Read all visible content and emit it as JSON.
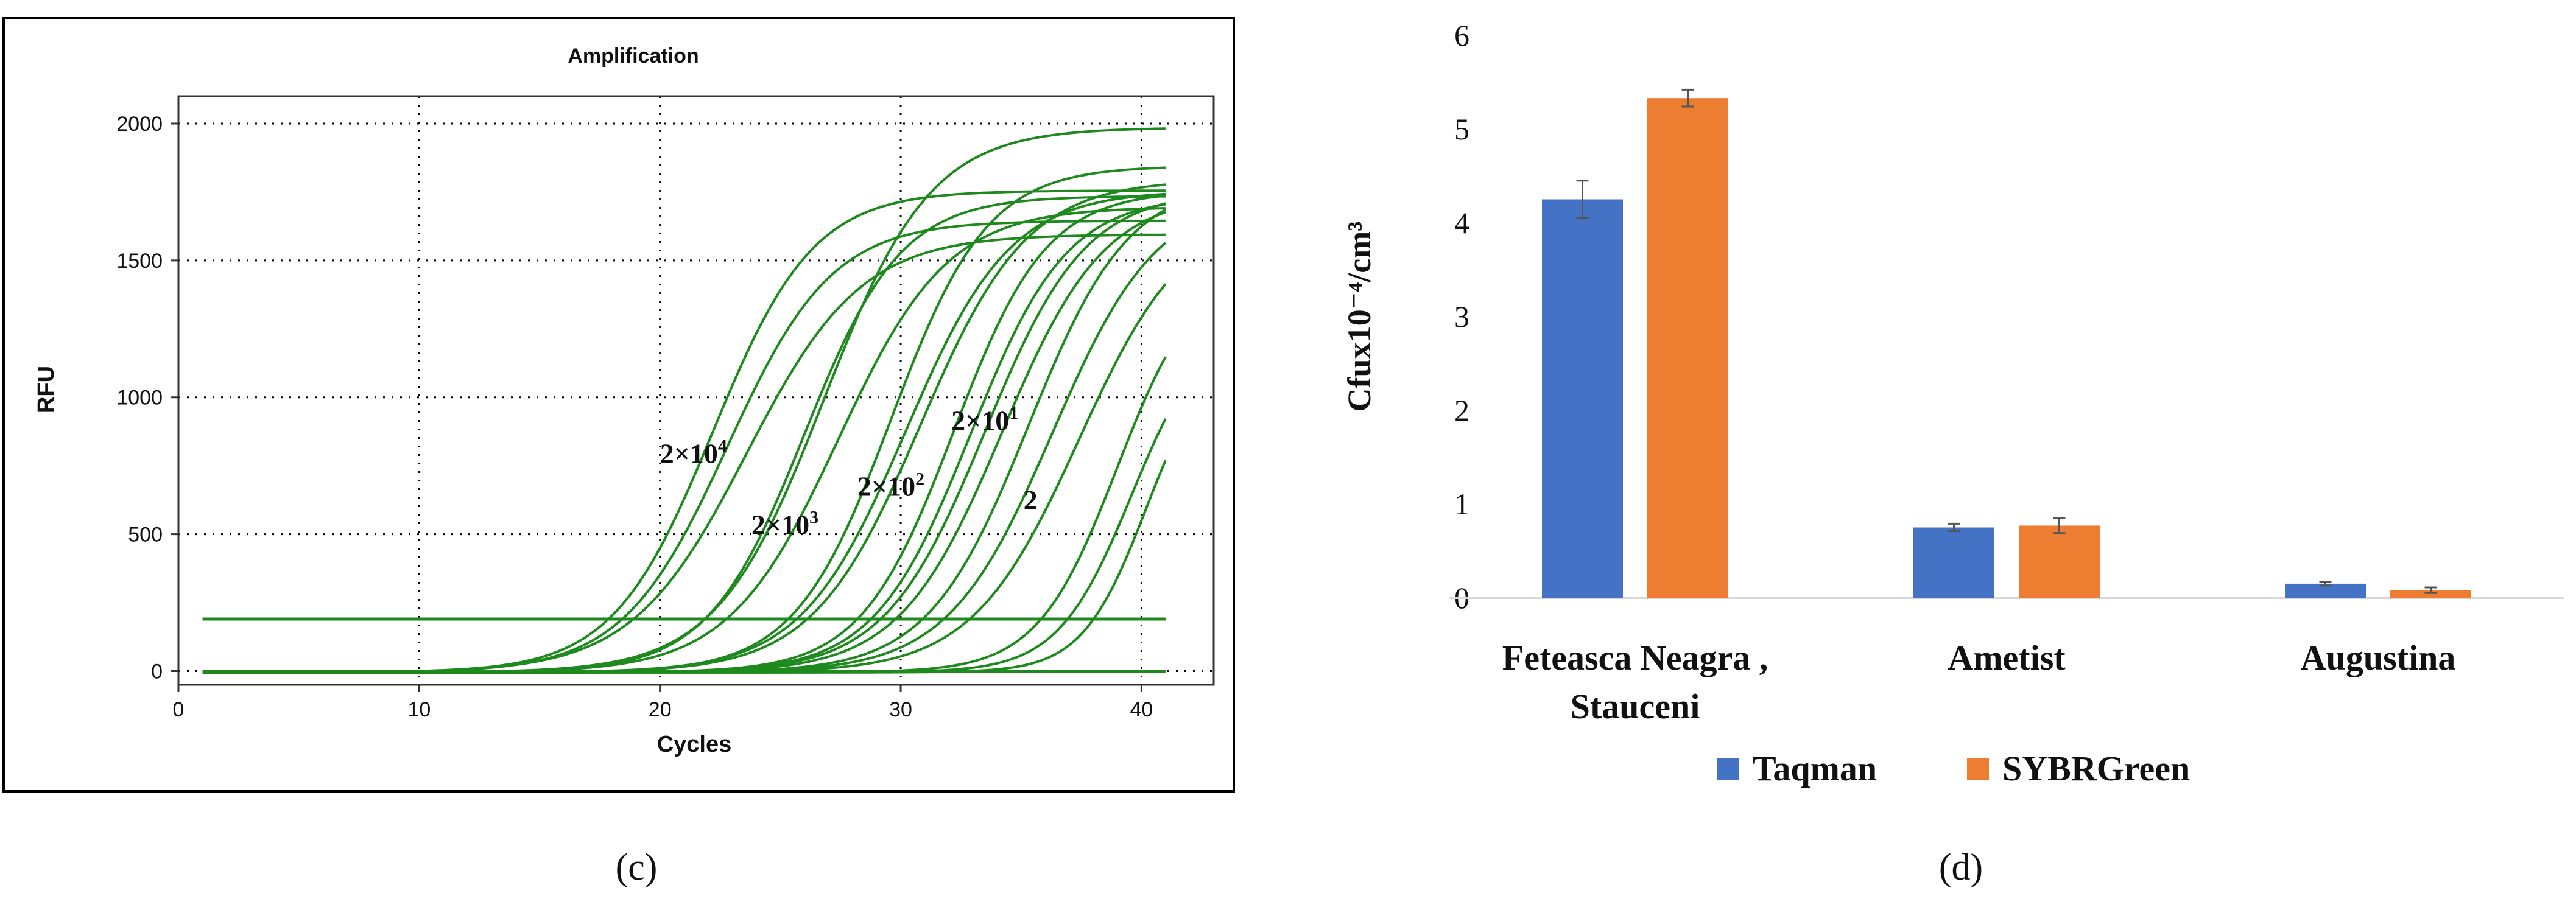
{
  "panel_c_caption": "(c)",
  "panel_d_caption": "(d)",
  "colors": {
    "curve": "#1e8a1e",
    "taqman": "#4472c4",
    "sybr": "#ed7d31",
    "grid": "#000000",
    "axis_d": "#d9d9d9"
  },
  "chart_data": [
    {
      "type": "line",
      "title": "Amplification",
      "xlabel": "Cycles",
      "ylabel": "RFU",
      "xlim": [
        0,
        43
      ],
      "ylim": [
        -50,
        2100
      ],
      "xticks": [
        0,
        10,
        20,
        30,
        40
      ],
      "yticks": [
        0,
        500,
        1000,
        1500,
        2000
      ],
      "grid": "dotted",
      "threshold": 190,
      "series": [
        {
          "name": "2×10^4 a",
          "ct": 22.2,
          "k": 0.48,
          "plateau": 1760
        },
        {
          "name": "2×10^4 b",
          "ct": 22.8,
          "k": 0.46,
          "plateau": 1650
        },
        {
          "name": "2×10^4 c",
          "ct": 23.6,
          "k": 0.42,
          "plateau": 1600
        },
        {
          "name": "2×10^3 a",
          "ct": 26.0,
          "k": 0.5,
          "plateau": 1740
        },
        {
          "name": "2×10^3 b",
          "ct": 26.8,
          "k": 0.45,
          "plateau": 1990
        },
        {
          "name": "2×10^3 c",
          "ct": 27.4,
          "k": 0.44,
          "plateau": 1700
        },
        {
          "name": "2×10^2 a",
          "ct": 29.6,
          "k": 0.5,
          "plateau": 1850
        },
        {
          "name": "2×10^2 b",
          "ct": 30.2,
          "k": 0.46,
          "plateau": 1760
        },
        {
          "name": "2×10^2 c",
          "ct": 30.8,
          "k": 0.45,
          "plateau": 1800
        },
        {
          "name": "2×10^1 a",
          "ct": 32.2,
          "k": 0.52,
          "plateau": 1760
        },
        {
          "name": "2×10^1 b",
          "ct": 32.9,
          "k": 0.5,
          "plateau": 1740
        },
        {
          "name": "2×10^1 c",
          "ct": 33.5,
          "k": 0.48,
          "plateau": 1760
        },
        {
          "name": "2×10^1 d",
          "ct": 34.2,
          "k": 0.47,
          "plateau": 1750
        },
        {
          "name": "2 a",
          "ct": 35.3,
          "k": 0.48,
          "plateau": 1800
        },
        {
          "name": "2 b",
          "ct": 36.3,
          "k": 0.46,
          "plateau": 1750
        },
        {
          "name": "2 c",
          "ct": 37.4,
          "k": 0.45,
          "plateau": 1700
        },
        {
          "name": "2 d",
          "ct": 39.0,
          "k": 0.6,
          "plateau": 1500
        },
        {
          "name": "2 e",
          "ct": 39.6,
          "k": 0.65,
          "plateau": 1300
        },
        {
          "name": "2 f",
          "ct": 40.2,
          "k": 0.75,
          "plateau": 1200
        }
      ],
      "annotations": [
        {
          "base": "2×10",
          "exp": "4",
          "x": 20.0,
          "y": 760
        },
        {
          "base": "2×10",
          "exp": "3",
          "x": 23.8,
          "y": 500
        },
        {
          "base": "2×10",
          "exp": "2",
          "x": 28.2,
          "y": 640
        },
        {
          "base": "2×10",
          "exp": "1",
          "x": 32.1,
          "y": 880
        },
        {
          "base": "2",
          "exp": "",
          "x": 35.1,
          "y": 590
        }
      ]
    },
    {
      "type": "bar",
      "title": "",
      "xlabel": "",
      "ylabel": "Cfux10⁻⁴/cm³",
      "ylim": [
        0,
        6
      ],
      "yticks": [
        0,
        1,
        2,
        3,
        4,
        5,
        6
      ],
      "categories": [
        [
          "Feteasca Neagra ,",
          "Stauceni"
        ],
        [
          "Ametist"
        ],
        [
          "Augustina"
        ]
      ],
      "legend": "bottom",
      "series": [
        {
          "name": "Taqman",
          "values": [
            4.25,
            0.75,
            0.15
          ],
          "errors": [
            0.2,
            0.04,
            0.02
          ]
        },
        {
          "name": "SYBRGreen",
          "values": [
            5.33,
            0.77,
            0.08
          ],
          "errors": [
            0.09,
            0.08,
            0.03
          ]
        }
      ]
    }
  ]
}
